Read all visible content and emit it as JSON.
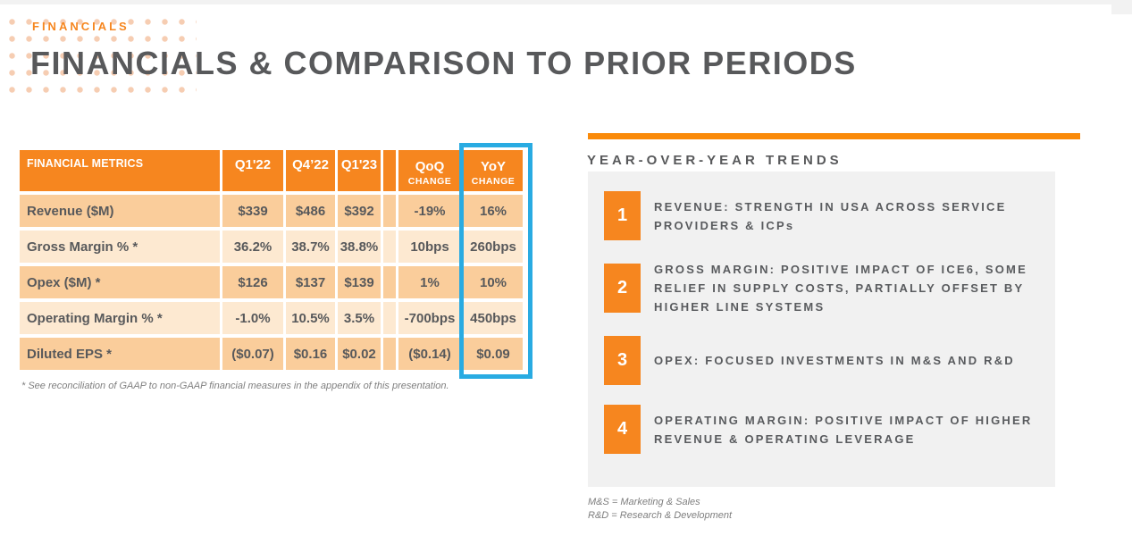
{
  "page": {
    "eyebrow": "FINANCIALS",
    "title": "FINANCIALS & COMPARISON TO PRIOR PERIODS"
  },
  "table": {
    "header": {
      "metrics": "FINANCIAL METRICS",
      "q1_22": "Q1'22",
      "q4_22": "Q4’22",
      "q1_23": "Q1'23",
      "qoq_top": "QoQ",
      "qoq_bottom": "CHANGE",
      "yoy_top": "YoY",
      "yoy_bottom": "CHANGE"
    },
    "rows": [
      {
        "label": "Revenue ($M)",
        "q1_22": "$339",
        "q4_22": "$486",
        "q1_23": "$392",
        "qoq": "-19%",
        "yoy": "16%"
      },
      {
        "label": "Gross Margin % *",
        "q1_22": "36.2%",
        "q4_22": "38.7%",
        "q1_23": "38.8%",
        "qoq": "10bps",
        "yoy": "260bps"
      },
      {
        "label": "Opex ($M) *",
        "q1_22": "$126",
        "q4_22": "$137",
        "q1_23": "$139",
        "qoq": "1%",
        "yoy": "10%"
      },
      {
        "label": "Operating Margin % *",
        "q1_22": "-1.0%",
        "q4_22": "10.5%",
        "q1_23": "3.5%",
        "qoq": "-700bps",
        "yoy": "450bps"
      },
      {
        "label": "Diluted EPS *",
        "q1_22": "($0.07)",
        "q4_22": "$0.16",
        "q1_23": "$0.02",
        "qoq": "($0.14)",
        "yoy": "$0.09"
      }
    ],
    "footnote": "* See reconciliation of GAAP to non-GAAP financial measures in the appendix of this presentation."
  },
  "trends": {
    "title": "YEAR-OVER-YEAR TRENDS",
    "items": [
      {
        "number": "1",
        "text": "REVENUE: STRENGTH IN USA ACROSS SERVICE PROVIDERS & ICPs"
      },
      {
        "number": "2",
        "text": "GROSS MARGIN: POSITIVE IMPACT OF ICE6, SOME RELIEF IN SUPPLY COSTS, PARTIALLY OFFSET BY HIGHER LINE SYSTEMS"
      },
      {
        "number": "3",
        "text": "OPEX: FOCUSED INVESTMENTS IN M&S AND R&D"
      },
      {
        "number": "4",
        "text": "OPERATING MARGIN: POSITIVE IMPACT OF HIGHER REVENUE & OPERATING LEVERAGE"
      }
    ],
    "footnotes": [
      "M&S = Marketing & Sales",
      "R&D = Research & Development"
    ]
  },
  "colors": {
    "accent_orange": "#F6861F",
    "divider_orange": "#FA8A0A",
    "row_shade_dark": "#FACD9B",
    "row_shade_light": "#FDE9D1",
    "highlight_blue": "#29ABE2",
    "text_dark_gray": "#58595B",
    "panel_gray": "#F1F1F1",
    "dot_peach": "#F6CDB2"
  }
}
